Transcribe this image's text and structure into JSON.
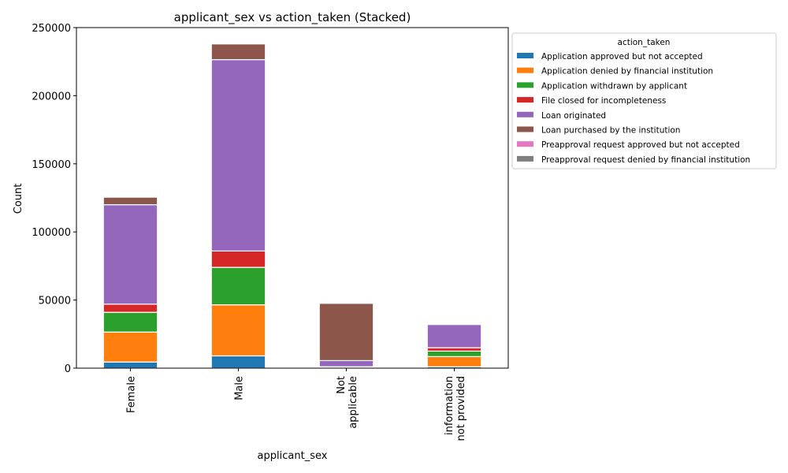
{
  "chart_data": {
    "type": "bar",
    "stacked": true,
    "title": "applicant_sex vs action_taken (Stacked)",
    "xlabel": "applicant_sex",
    "ylabel": "Count",
    "ylim": [
      0,
      250000
    ],
    "yticks": [
      0,
      50000,
      100000,
      150000,
      200000,
      250000
    ],
    "grid": false,
    "legend_title": "action_taken",
    "legend_position": "outside-right",
    "categories": [
      "Female",
      "Male",
      "Not\napplicable",
      "information\nnot provided"
    ],
    "series": [
      {
        "name": "Application approved but not accepted",
        "color": "#1f77b4",
        "values": [
          4500,
          9000,
          150,
          1000
        ]
      },
      {
        "name": "Application denied by financial institution",
        "color": "#ff7f0e",
        "values": [
          22000,
          37500,
          450,
          7500
        ]
      },
      {
        "name": "Application withdrawn by applicant",
        "color": "#2ca02c",
        "values": [
          14500,
          27500,
          300,
          4000
        ]
      },
      {
        "name": "File closed for incompleteness",
        "color": "#d62728",
        "values": [
          6000,
          12000,
          150,
          2500
        ]
      },
      {
        "name": "Loan originated",
        "color": "#9467bd",
        "values": [
          73000,
          140500,
          4500,
          17000
        ]
      },
      {
        "name": "Loan purchased by the institution",
        "color": "#8c564b",
        "values": [
          5500,
          11500,
          42000,
          0
        ]
      },
      {
        "name": "Preapproval request approved but not accepted",
        "color": "#e377c2",
        "values": [
          0,
          0,
          0,
          0
        ]
      },
      {
        "name": "Preapproval request denied by financial institution",
        "color": "#7f7f7f",
        "values": [
          0,
          0,
          0,
          0
        ]
      }
    ]
  }
}
